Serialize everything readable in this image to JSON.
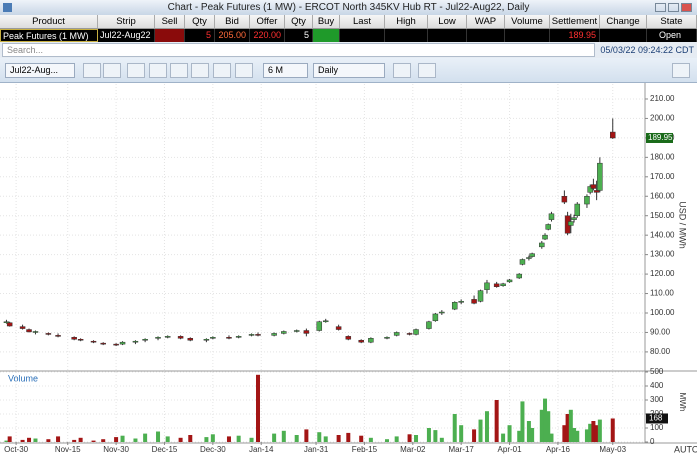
{
  "window": {
    "title": "Chart - Peak Futures (1 MW) - ERCOT North 345KV Hub RT - Jul22-Aug22, Daily"
  },
  "table": {
    "headers": [
      "Product",
      "Strip",
      "Sell",
      "Qty",
      "Bid",
      "Offer",
      "Qty",
      "Buy",
      "Last",
      "High",
      "Low",
      "WAP",
      "Volume",
      "Settlement",
      "Change",
      "State"
    ],
    "row": [
      "Peak Futures (1 MW)",
      "Jul22-Aug22",
      null,
      5,
      "205.00",
      "220.00",
      5,
      null,
      null,
      null,
      null,
      null,
      null,
      "189.95",
      null,
      "Open"
    ]
  },
  "search": {
    "placeholder": "Search...",
    "timestamp": "05/03/22 09:24:22 CDT"
  },
  "toolbar": {
    "contract": "Jul22-Aug...",
    "range": "6 M",
    "interval": "Daily"
  },
  "chart_data": {
    "type": "candlestick",
    "y_label": "USD / MWh",
    "volume_label": "Volume",
    "volume_axis_label": "MWh",
    "x_axis_mode": "AUTO",
    "colors": {
      "up": "#4caf50",
      "down": "#a31515"
    },
    "grid": true,
    "x": [
      "Oct-27",
      "Oct-28",
      "Nov-01",
      "Nov-03",
      "Nov-05",
      "Nov-09",
      "Nov-12",
      "Nov-17",
      "Nov-19",
      "Nov-23",
      "Nov-26",
      "Nov-30",
      "Dec-02",
      "Dec-06",
      "Dec-09",
      "Dec-13",
      "Dec-16",
      "Dec-20",
      "Dec-23",
      "Dec-28",
      "Dec-30",
      "Jan-04",
      "Jan-07",
      "Jan-11",
      "Jan-13",
      "Jan-18",
      "Jan-21",
      "Jan-25",
      "Jan-28",
      "Feb-01",
      "Feb-03",
      "Feb-07",
      "Feb-10",
      "Feb-14",
      "Feb-17",
      "Feb-22",
      "Feb-25",
      "Mar-01",
      "Mar-03",
      "Mar-07",
      "Mar-09",
      "Mar-11",
      "Mar-15",
      "Mar-17",
      "Mar-21",
      "Mar-23",
      "Mar-25",
      "Mar-28",
      "Mar-30",
      "Apr-01",
      "Apr-04",
      "Apr-05",
      "Apr-07",
      "Apr-08",
      "Apr-11",
      "Apr-12",
      "Apr-13",
      "Apr-14",
      "Apr-18",
      "Apr-19",
      "Apr-20",
      "Apr-21",
      "Apr-22",
      "Apr-25",
      "Apr-26",
      "Apr-27",
      "Apr-28",
      "Apr-29",
      "May-03"
    ],
    "open": [
      95,
      95,
      93,
      91.5,
      90,
      89.5,
      88.5,
      87.5,
      86.5,
      85.5,
      84.5,
      84,
      84,
      85,
      86,
      87,
      87.5,
      88,
      87,
      86,
      87,
      87.5,
      87.5,
      88.5,
      89,
      88.5,
      89.5,
      90.5,
      91,
      91,
      95.5,
      93,
      88,
      86,
      85,
      87,
      88.5,
      89.5,
      89,
      92,
      96,
      100,
      102,
      105.5,
      107,
      106,
      112,
      115,
      114,
      116,
      118,
      125,
      128,
      129,
      134,
      138,
      143,
      148,
      160,
      150,
      145,
      148,
      150,
      156,
      162,
      166,
      163,
      163,
      193
    ],
    "high": [
      96.5,
      95.5,
      94,
      92,
      91,
      90,
      89.5,
      88,
      87,
      86,
      85,
      84.5,
      85.5,
      86,
      87,
      88,
      88.5,
      88.5,
      87.5,
      87,
      88,
      88.5,
      88.5,
      89.5,
      90,
      90,
      91,
      91.5,
      92,
      96,
      97,
      94,
      88.5,
      86.5,
      87.5,
      88,
      90.5,
      90,
      92,
      96,
      100,
      101.5,
      106,
      107,
      109,
      112,
      117,
      116,
      115.5,
      117.5,
      120.5,
      128,
      129.5,
      131,
      137,
      141,
      146,
      152,
      163,
      152,
      151,
      150.5,
      157,
      161,
      166,
      169,
      168,
      180,
      200
    ],
    "low": [
      94.5,
      93,
      91.5,
      90,
      89,
      88.5,
      87.5,
      86,
      85.5,
      84.5,
      83.5,
      83,
      83.5,
      84,
      85,
      86,
      87,
      86.5,
      85.5,
      85,
      86.5,
      86.5,
      87,
      88,
      88,
      88,
      89,
      90,
      88,
      90.5,
      95,
      91,
      86,
      84.5,
      84.5,
      86.5,
      88,
      88.5,
      88.5,
      91.5,
      95.5,
      99,
      101.5,
      104.5,
      104.5,
      105.5,
      110,
      113,
      113.5,
      115.5,
      117.5,
      124.5,
      127,
      128.5,
      133,
      137.5,
      142.5,
      147,
      156,
      140,
      141,
      146.5,
      149,
      154,
      161,
      163,
      158,
      162,
      189.5
    ],
    "close": [
      95.5,
      93.3,
      92,
      90.3,
      90.5,
      89,
      88,
      86.5,
      86,
      85,
      84,
      83.5,
      85,
      85.5,
      86.5,
      87.5,
      88,
      87,
      86,
      86.5,
      87.5,
      87,
      88,
      89,
      88.5,
      89.5,
      90.5,
      91,
      89.5,
      95.5,
      96,
      91.5,
      86.5,
      85,
      87,
      87.5,
      90,
      89,
      91.5,
      95.5,
      99.5,
      100.5,
      105.5,
      106,
      105,
      111.5,
      115.5,
      113.5,
      115,
      117,
      120,
      127.5,
      128.5,
      130.5,
      136,
      140,
      145.5,
      151,
      157,
      141,
      147,
      149,
      156,
      160,
      165,
      164,
      162,
      177,
      189.95
    ],
    "volume": [
      10,
      40,
      15,
      30,
      25,
      20,
      40,
      15,
      30,
      10,
      20,
      35,
      45,
      25,
      60,
      75,
      40,
      30,
      50,
      35,
      55,
      40,
      45,
      30,
      480,
      60,
      80,
      50,
      90,
      70,
      40,
      50,
      65,
      45,
      30,
      20,
      40,
      55,
      50,
      100,
      85,
      30,
      200,
      120,
      90,
      160,
      220,
      300,
      60,
      120,
      80,
      290,
      150,
      100,
      230,
      310,
      220,
      60,
      120,
      200,
      230,
      100,
      80,
      90,
      130,
      150,
      120,
      160,
      168
    ],
    "xlim": [
      "Oct-25",
      "May-13"
    ],
    "xticks": [
      "Oct-30",
      "Nov-15",
      "Nov-30",
      "Dec-15",
      "Dec-30",
      "Jan-14",
      "Jan-31",
      "Feb-15",
      "Mar-02",
      "Mar-17",
      "Apr-01",
      "Apr-16",
      "May-03"
    ],
    "ylim": [
      70.7,
      217.7
    ],
    "yticks": [
      {
        "value": 80,
        "label": "80.00"
      },
      {
        "value": 90,
        "label": "90.00"
      },
      {
        "value": 100,
        "label": "100.00"
      },
      {
        "value": 110,
        "label": "110.00"
      },
      {
        "value": 120,
        "label": "120.00"
      },
      {
        "value": 130,
        "label": "130.00"
      },
      {
        "value": 140,
        "label": "140.00"
      },
      {
        "value": 150,
        "label": "150.00"
      },
      {
        "value": 160,
        "label": "160.00"
      },
      {
        "value": 170,
        "label": "170.00"
      },
      {
        "value": 180,
        "label": "180.00"
      },
      {
        "value": 190,
        "label": "190.00"
      },
      {
        "value": 200,
        "label": "200.00"
      },
      {
        "value": 210,
        "label": "210.00"
      }
    ],
    "volume_ylim": [
      0,
      500
    ],
    "volume_yticks": [
      0,
      100,
      200,
      300,
      400,
      500
    ]
  }
}
